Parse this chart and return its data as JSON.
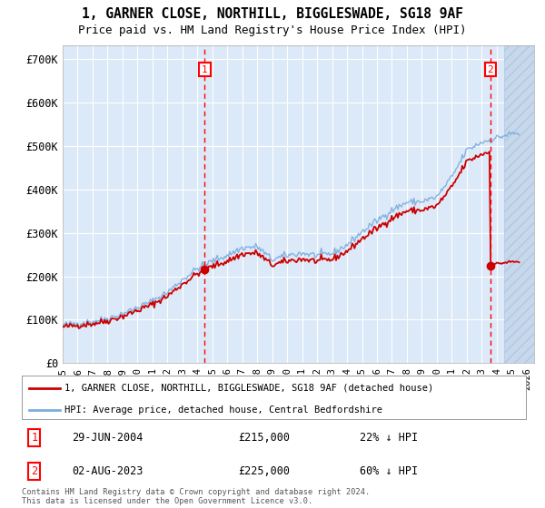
{
  "title_line1": "1, GARNER CLOSE, NORTHILL, BIGGLESWADE, SG18 9AF",
  "title_line2": "Price paid vs. HM Land Registry's House Price Index (HPI)",
  "ylim": [
    0,
    730000
  ],
  "xlim_start": 1995.0,
  "xlim_end": 2026.5,
  "yticks": [
    0,
    100000,
    200000,
    300000,
    400000,
    500000,
    600000,
    700000
  ],
  "ytick_labels": [
    "£0",
    "£100K",
    "£200K",
    "£300K",
    "£400K",
    "£500K",
    "£600K",
    "£700K"
  ],
  "plot_bg_color": "#dce9f8",
  "hatch_region_color": "#c8d8ec",
  "grid_color": "#ffffff",
  "marker1_date": 2004.49,
  "marker1_price": 215000,
  "marker1_label": "1",
  "marker2_date": 2023.58,
  "marker2_price": 225000,
  "marker2_label": "2",
  "legend_line1": "1, GARNER CLOSE, NORTHILL, BIGGLESWADE, SG18 9AF (detached house)",
  "legend_line2": "HPI: Average price, detached house, Central Bedfordshire",
  "annotation1_date": "29-JUN-2004",
  "annotation1_price": "£215,000",
  "annotation1_pct": "22% ↓ HPI",
  "annotation2_date": "02-AUG-2023",
  "annotation2_price": "£225,000",
  "annotation2_pct": "60% ↓ HPI",
  "footer": "Contains HM Land Registry data © Crown copyright and database right 2024.\nThis data is licensed under the Open Government Licence v3.0.",
  "hpi_color": "#7aacdc",
  "price_color": "#cc0000",
  "hpi_base_values": [
    88000,
    92000,
    96000,
    103000,
    114000,
    128000,
    143000,
    163000,
    192000,
    218000,
    235000,
    248000,
    265000,
    268000,
    238000,
    248000,
    253000,
    248000,
    252000,
    272000,
    302000,
    328000,
    352000,
    370000,
    372000,
    382000,
    428000,
    490000,
    508000,
    518000,
    528000
  ],
  "hpi_base_years": [
    1995,
    1996,
    1997,
    1998,
    1999,
    2000,
    2001,
    2002,
    2003,
    2004,
    2005,
    2006,
    2007,
    2008,
    2009,
    2010,
    2011,
    2012,
    2013,
    2014,
    2015,
    2016,
    2017,
    2018,
    2019,
    2020,
    2021,
    2022,
    2023,
    2024,
    2025
  ],
  "sale1_year": 2004.49,
  "sale1_price": 215000,
  "sale2_year": 2023.58,
  "sale2_price": 225000,
  "hatch_start": 2024.5,
  "noise_seed": 42,
  "noise_scale": 4000,
  "n_points": 370
}
